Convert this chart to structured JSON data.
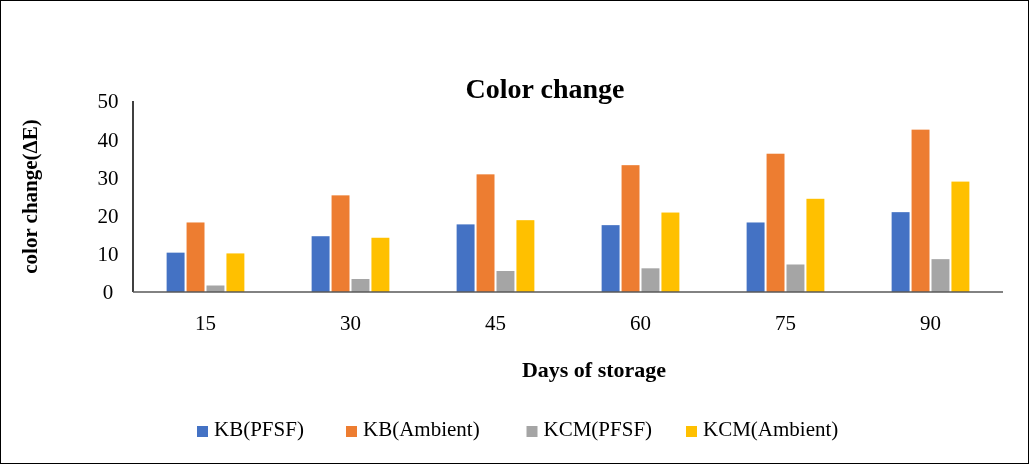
{
  "chart_data": {
    "type": "bar",
    "title": "Color change",
    "xlabel": "Days of storage",
    "ylabel": "color change(ΔE)",
    "categories": [
      "15",
      "30",
      "45",
      "60",
      "75",
      "90"
    ],
    "series": [
      {
        "name": "KB(PFSF)",
        "color": "#4472c4",
        "values": [
          10.3,
          14.6,
          17.7,
          17.5,
          18.2,
          20.9
        ]
      },
      {
        "name": "KB(Ambient)",
        "color": "#ed7d31",
        "values": [
          18.2,
          25.3,
          30.8,
          33.2,
          36.2,
          42.5
        ]
      },
      {
        "name": "KCM(PFSF)",
        "color": "#a5a5a5",
        "values": [
          1.7,
          3.4,
          5.5,
          6.2,
          7.2,
          8.6
        ]
      },
      {
        "name": "KCM(Ambient)",
        "color": "#ffc000",
        "values": [
          10.1,
          14.2,
          18.8,
          20.8,
          24.4,
          28.9
        ]
      }
    ],
    "ylim": [
      0,
      50
    ],
    "yticks": [
      0,
      10,
      20,
      30,
      40,
      50
    ],
    "legend": "bottom"
  }
}
